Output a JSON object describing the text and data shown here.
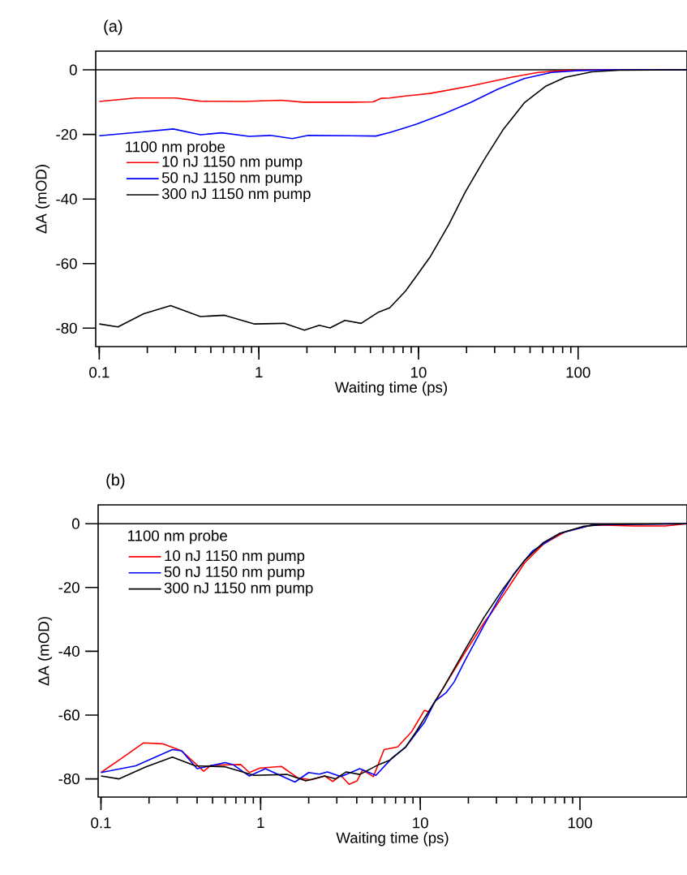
{
  "chart_data": [
    {
      "type": "line",
      "title": "(a)",
      "xlabel": "Waiting time (ps)",
      "ylabel": "ΔA (mOD)",
      "legend_title": "1100 nm probe",
      "log": "x",
      "legend": "left",
      "xlim": [
        0.095,
        481
      ],
      "ylim": [
        -85.7,
        5.8
      ],
      "xticks": [
        0.1,
        1,
        10,
        100
      ],
      "yticks": [
        0,
        -20,
        -40,
        -60,
        -80
      ],
      "ref_lines": [
        {
          "axis": "y",
          "value": 0,
          "color": "#000000"
        }
      ],
      "series": [
        {
          "name": "10 nJ 1150 nm pump",
          "color": "#ff0000",
          "x": [
            0.1,
            0.169,
            0.303,
            0.43,
            0.8,
            1.38,
            1.89,
            3.81,
            5.2,
            5.85,
            6.6,
            8.3,
            11.8,
            21.2,
            38,
            56,
            83,
            150,
            481
          ],
          "values": [
            -9.8,
            -8.7,
            -8.7,
            -9.7,
            -9.8,
            -9.4,
            -10,
            -10,
            -9.9,
            -8.8,
            -8.7,
            -8.1,
            -7.3,
            -5.0,
            -2.3,
            -0.8,
            -0.2,
            0,
            0
          ]
        },
        {
          "name": "50 nJ 1150 nm pump",
          "color": "#0000ff",
          "x": [
            0.1,
            0.169,
            0.291,
            0.43,
            0.586,
            0.87,
            1.18,
            1.62,
            2.04,
            3.81,
            5.41,
            6.6,
            8.3,
            9.7,
            14.4,
            21.2,
            31.3,
            46,
            68,
            101,
            160,
            481
          ],
          "values": [
            -20.4,
            -19.4,
            -18.3,
            -20.1,
            -19.5,
            -20.6,
            -20.3,
            -21.3,
            -20.3,
            -20.4,
            -20.5,
            -19.4,
            -17.9,
            -16.8,
            -13.6,
            -10.1,
            -6.0,
            -2.7,
            -0.8,
            -0.2,
            0,
            0
          ]
        },
        {
          "name": "300 nJ 1150 nm pump",
          "color": "#000000",
          "x": [
            0.1,
            0.131,
            0.19,
            0.28,
            0.43,
            0.61,
            0.94,
            1.44,
            1.93,
            2.39,
            2.79,
            3.46,
            4.37,
            5.63,
            6.6,
            8.3,
            11.8,
            15.5,
            19.6,
            25.8,
            33.8,
            46,
            63,
            83,
            122,
            181,
            481
          ],
          "values": [
            -78.7,
            -79.6,
            -75.5,
            -73,
            -76.4,
            -76,
            -78.7,
            -78.5,
            -80.6,
            -79.1,
            -79.9,
            -77.6,
            -78.5,
            -75,
            -73.7,
            -68.5,
            -58,
            -47.9,
            -37.9,
            -27.8,
            -18.6,
            -10.2,
            -5.0,
            -2.3,
            -0.6,
            -0.1,
            0
          ]
        }
      ]
    },
    {
      "type": "line",
      "title": "(b)",
      "xlabel": "Waiting time (ps)",
      "ylabel": "ΔA (mOD)",
      "legend_title": "1100 nm probe",
      "log": "x",
      "legend": "top left",
      "xlim": [
        0.096,
        468
      ],
      "ylim": [
        -85.7,
        5.9
      ],
      "xticks": [
        0.1,
        1,
        10,
        100
      ],
      "yticks": [
        0,
        -20,
        -40,
        -60,
        -80
      ],
      "ref_lines": [
        {
          "axis": "y",
          "value": 0,
          "color": "#000000"
        }
      ],
      "series": [
        {
          "name": "10 nJ 1150 nm pump",
          "color": "#ff0000",
          "x": [
            0.1,
            0.136,
            0.185,
            0.243,
            0.32,
            0.44,
            0.49,
            0.75,
            0.85,
            0.99,
            1.35,
            1.71,
            2.07,
            2.52,
            2.83,
            3.18,
            3.58,
            4.02,
            4.35,
            5.08,
            5.93,
            7.2,
            8.8,
            10.6,
            11.3,
            14,
            19.1,
            25.1,
            28.2,
            33,
            45,
            59,
            81,
            119,
            214,
            341,
            468
          ],
          "values": [
            -78,
            -73.4,
            -68.7,
            -69,
            -71.2,
            -77.6,
            -75.7,
            -75.5,
            -78,
            -76.6,
            -76.1,
            -79.7,
            -80.3,
            -79.1,
            -80.8,
            -78.9,
            -81.7,
            -80.6,
            -77.2,
            -79.3,
            -70.8,
            -70,
            -65.3,
            -58.5,
            -59,
            -51.3,
            -40.3,
            -31,
            -27.6,
            -22.5,
            -12.3,
            -6.4,
            -2.5,
            -0.4,
            -0.7,
            -0.7,
            0
          ]
        },
        {
          "name": "50 nJ 1150 nm pump",
          "color": "#0000ff",
          "x": [
            0.1,
            0.165,
            0.28,
            0.32,
            0.4,
            0.6,
            0.67,
            0.85,
            1.07,
            1.64,
            2,
            2.33,
            2.62,
            3.18,
            4.18,
            5.27,
            6.67,
            8.1,
            10.6,
            12.4,
            14.5,
            16.3,
            19.1,
            25.1,
            30.5,
            38.5,
            50.6,
            75,
            119,
            214,
            468
          ],
          "values": [
            -78,
            -75.9,
            -70.8,
            -71.2,
            -76.8,
            -74.9,
            -75.5,
            -79.1,
            -76.8,
            -81,
            -78,
            -78.5,
            -77.8,
            -79.3,
            -76.8,
            -78.9,
            -73.4,
            -70,
            -62.3,
            -55.6,
            -53,
            -49.6,
            -42.8,
            -31.8,
            -24.2,
            -15.7,
            -8.5,
            -3.0,
            -0.4,
            -0.2,
            0
          ]
        },
        {
          "name": "300 nJ 1150 nm pump",
          "color": "#000000",
          "x": [
            0.1,
            0.13,
            0.19,
            0.28,
            0.39,
            0.6,
            0.91,
            1.46,
            1.92,
            2.52,
            2.94,
            3.44,
            4.18,
            5.5,
            6.41,
            8.1,
            9.5,
            14,
            19.1,
            25.1,
            33,
            45,
            59,
            75,
            106,
            145,
            468
          ],
          "values": [
            -79.1,
            -80,
            -76.3,
            -73.2,
            -75.9,
            -76.2,
            -78.9,
            -78.6,
            -80.6,
            -79.1,
            -80,
            -77.8,
            -78.6,
            -75.5,
            -74.2,
            -70,
            -64.9,
            -51.3,
            -39.4,
            -29.3,
            -20.4,
            -11.5,
            -5.9,
            -3.0,
            -0.8,
            -0.2,
            0
          ]
        }
      ]
    }
  ]
}
